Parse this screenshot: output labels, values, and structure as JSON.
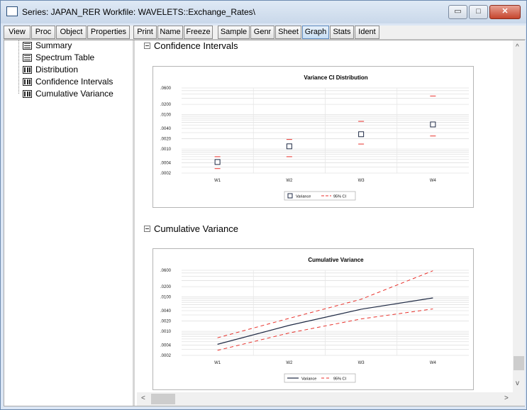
{
  "window": {
    "title": "Series: JAPAN_RER   Workfile: WAVELETS::Exchange_Rates\\",
    "controls": {
      "minimize": "▭",
      "maximize": "□",
      "close": "✕"
    }
  },
  "toolbar": {
    "buttons": [
      "View",
      "Proc",
      "Object",
      "Properties",
      "Print",
      "Name",
      "Freeze",
      "Sample",
      "Genr",
      "Sheet",
      "Graph",
      "Stats",
      "Ident"
    ],
    "active": "Graph"
  },
  "tree": {
    "items": [
      {
        "label": "Summary",
        "icon": "table-icon"
      },
      {
        "label": "Spectrum Table",
        "icon": "table-icon"
      },
      {
        "label": "Distribution",
        "icon": "graph-icon"
      },
      {
        "label": "Confidence Intervals",
        "icon": "graph-icon"
      },
      {
        "label": "Cumulative Variance",
        "icon": "graph-icon"
      }
    ]
  },
  "sections": [
    {
      "heading": "Confidence Intervals"
    },
    {
      "heading": "Cumulative Variance"
    }
  ],
  "chart_data": [
    {
      "type": "scatter",
      "title": "Variance CI Distribution",
      "categories": [
        "W1",
        "W2",
        "W3",
        "W4"
      ],
      "yticks": [
        ".0600",
        ".0200",
        ".0100",
        ".0040",
        ".0020",
        ".0010",
        ".0004",
        ".0002"
      ],
      "yscale": "log",
      "ylim": [
        0.0002,
        0.06
      ],
      "series": [
        {
          "name": "Variance",
          "style": "square-marker",
          "color": "#1f2a44",
          "values": [
            0.00042,
            0.0012,
            0.0027,
            0.0052
          ]
        },
        {
          "name": "95% CI",
          "style": "dash-marker",
          "color": "#e8322c",
          "lower": [
            0.00027,
            0.0006,
            0.0014,
            0.0024
          ],
          "upper": [
            0.0006,
            0.0019,
            0.0064,
            0.035
          ]
        }
      ],
      "legend": "bottom-center",
      "grid": true
    },
    {
      "type": "line",
      "title": "Cumulative Variance",
      "categories": [
        "W1",
        "W2",
        "W3",
        "W4"
      ],
      "yticks": [
        ".0600",
        ".0200",
        ".0100",
        ".0040",
        ".0020",
        ".0010",
        ".0004",
        ".0002"
      ],
      "yscale": "log",
      "ylim": [
        0.0002,
        0.06
      ],
      "series": [
        {
          "name": "Variance",
          "style": "solid",
          "color": "#1f2a44",
          "values": [
            0.00042,
            0.0015,
            0.0044,
            0.0094
          ]
        },
        {
          "name": "95% CI",
          "style": "dashed",
          "color": "#e8322c",
          "lower": [
            0.00028,
            0.0009,
            0.0023,
            0.0045
          ],
          "upper": [
            0.00065,
            0.0024,
            0.0086,
            0.058
          ]
        }
      ],
      "legend": "bottom-center",
      "grid": true
    }
  ]
}
